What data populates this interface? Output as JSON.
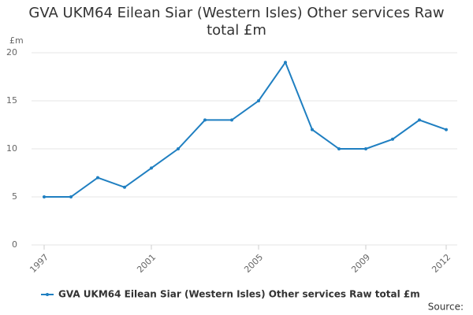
{
  "chart_data": {
    "type": "line",
    "title": "GVA UKM64 Eilean Siar (Western Isles) Other services Raw total £m",
    "y_label": "£m",
    "source": "Source:",
    "x": [
      1997,
      1998,
      1999,
      2000,
      2001,
      2002,
      2003,
      2004,
      2005,
      2006,
      2007,
      2008,
      2009,
      2010,
      2011,
      2012
    ],
    "series": [
      {
        "name": "GVA UKM64 Eilean Siar (Western Isles) Other services Raw total £m",
        "color": "#1f7fc1",
        "values": [
          5,
          5,
          7,
          6,
          8,
          10,
          13,
          13,
          15,
          19,
          12,
          10,
          10,
          11,
          13,
          12
        ]
      }
    ],
    "xlim": [
      1997,
      2012
    ],
    "xticks": [
      1997,
      2001,
      2005,
      2009,
      2012
    ],
    "ylim": [
      0,
      20
    ],
    "yticks": [
      0,
      5,
      10,
      15,
      20
    ],
    "grid": true
  }
}
